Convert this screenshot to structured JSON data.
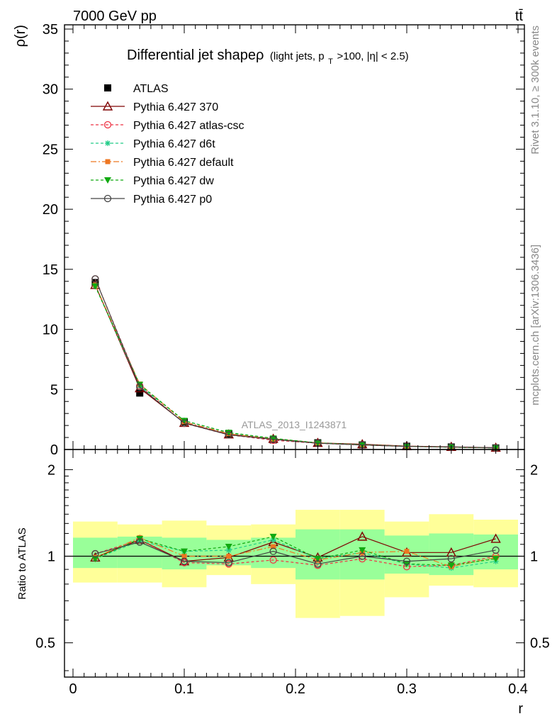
{
  "header": {
    "left": "7000 GeV pp",
    "right": "tt̄"
  },
  "side_text": {
    "rivet": "Rivet 3.1.10, ≥ 300k events",
    "mcplots": "mcplots.cern.ch [arXiv:1306.3436]"
  },
  "watermark": "ATLAS_2013_I1243871",
  "title": {
    "main": "Differential jet shapeρ",
    "sub_a": "(light jets, p",
    "sub_sub": "T",
    "sub_b": ">100, |η| < 2.5)"
  },
  "chart_data": [
    {
      "type": "line",
      "panel": "main",
      "ylabel": "ρ(r)",
      "xlim": [
        0,
        0.4
      ],
      "ylim": [
        0,
        35
      ],
      "x_ticks": [
        0,
        0.1,
        0.2,
        0.3,
        0.4
      ],
      "x_tick_labels": [
        "0",
        "0.1",
        "0.2",
        "0.3",
        "0.4"
      ],
      "y_ticks": [
        0,
        5,
        10,
        15,
        20,
        25,
        30,
        35
      ],
      "y_tick_labels": [
        "0",
        "5",
        "10",
        "15",
        "20",
        "25",
        "30",
        "35"
      ],
      "legend_position": "top-left",
      "x": [
        0.02,
        0.06,
        0.1,
        0.14,
        0.18,
        0.22,
        0.26,
        0.3,
        0.34,
        0.38
      ],
      "series": [
        {
          "name": "ATLAS",
          "color": "#000000",
          "marker": "square",
          "dash": "none",
          "values": [
            13.9,
            4.7,
            2.3,
            1.3,
            0.8,
            0.56,
            0.38,
            0.27,
            0.21,
            0.13
          ]
        },
        {
          "name": "Pythia 6.427 370",
          "color": "#7f0000",
          "marker": "triangle-open",
          "dash": "solid",
          "values": [
            13.7,
            5.1,
            2.22,
            1.26,
            0.89,
            0.55,
            0.44,
            0.28,
            0.22,
            0.15
          ]
        },
        {
          "name": "Pythia 6.427 atlas-csc",
          "color": "#ee3344",
          "marker": "circle-open",
          "dash": "short",
          "values": [
            14.2,
            5.3,
            2.18,
            1.22,
            0.77,
            0.52,
            0.37,
            0.25,
            0.19,
            0.13
          ]
        },
        {
          "name": "Pythia 6.427 d6t",
          "color": "#22cc88",
          "marker": "star",
          "dash": "short",
          "values": [
            13.6,
            5.3,
            2.4,
            1.38,
            0.9,
            0.55,
            0.39,
            0.26,
            0.19,
            0.13
          ]
        },
        {
          "name": "Pythia 6.427 default",
          "color": "#ee7722",
          "marker": "square-filled",
          "dash": "dashdot",
          "values": [
            13.7,
            5.45,
            2.3,
            1.31,
            0.86,
            0.55,
            0.4,
            0.28,
            0.2,
            0.13
          ]
        },
        {
          "name": "Pythia 6.427 dw",
          "color": "#11aa11",
          "marker": "triangle-down",
          "dash": "short",
          "values": [
            13.6,
            5.4,
            2.4,
            1.41,
            0.93,
            0.55,
            0.4,
            0.26,
            0.19,
            0.13
          ]
        },
        {
          "name": "Pythia 6.427 p0",
          "color": "#444444",
          "marker": "circle-open",
          "dash": "solid",
          "values": [
            14.2,
            5.2,
            2.2,
            1.22,
            0.84,
            0.52,
            0.38,
            0.26,
            0.21,
            0.14
          ]
        }
      ]
    },
    {
      "type": "line",
      "panel": "ratio",
      "xlabel": "r",
      "ylabel": "Ratio to ATLAS",
      "xlim": [
        0,
        0.4
      ],
      "ylim": [
        0.38,
        2.35
      ],
      "log_y": true,
      "y_ticks": [
        0.5,
        1,
        2
      ],
      "y_tick_labels": [
        "0.5",
        "1",
        "2"
      ],
      "x": [
        0.02,
        0.06,
        0.1,
        0.14,
        0.18,
        0.22,
        0.26,
        0.3,
        0.34,
        0.38
      ],
      "bins": [
        [
          0.0,
          0.04
        ],
        [
          0.04,
          0.08
        ],
        [
          0.08,
          0.12
        ],
        [
          0.12,
          0.16
        ],
        [
          0.16,
          0.2
        ],
        [
          0.2,
          0.24
        ],
        [
          0.24,
          0.28
        ],
        [
          0.28,
          0.32
        ],
        [
          0.32,
          0.36
        ],
        [
          0.36,
          0.4
        ]
      ],
      "band_inner": [
        [
          0.91,
          1.16
        ],
        [
          0.91,
          1.17
        ],
        [
          0.9,
          1.16
        ],
        [
          0.93,
          1.14
        ],
        [
          0.91,
          1.16
        ],
        [
          0.83,
          1.24
        ],
        [
          0.83,
          1.24
        ],
        [
          0.87,
          1.18
        ],
        [
          0.86,
          1.2
        ],
        [
          0.9,
          1.19
        ]
      ],
      "band_outer": [
        [
          0.81,
          1.32
        ],
        [
          0.81,
          1.29
        ],
        [
          0.78,
          1.33
        ],
        [
          0.86,
          1.28
        ],
        [
          0.8,
          1.29
        ],
        [
          0.61,
          1.45
        ],
        [
          0.62,
          1.45
        ],
        [
          0.72,
          1.32
        ],
        [
          0.79,
          1.4
        ],
        [
          0.78,
          1.34
        ]
      ],
      "series": [
        {
          "name": "Pythia 6.427 370",
          "color": "#7f0000",
          "marker": "triangle-open",
          "dash": "solid",
          "values": [
            0.99,
            1.14,
            0.96,
            0.99,
            1.12,
            0.99,
            1.17,
            1.03,
            1.03,
            1.15
          ]
        },
        {
          "name": "Pythia 6.427 atlas-csc",
          "color": "#ee3344",
          "marker": "circle-open",
          "dash": "short",
          "values": [
            1.02,
            1.14,
            0.95,
            0.94,
            0.97,
            0.93,
            0.98,
            0.92,
            0.93,
            1.0
          ]
        },
        {
          "name": "Pythia 6.427 d6t",
          "color": "#22cc88",
          "marker": "star",
          "dash": "short",
          "values": [
            0.98,
            1.13,
            1.04,
            1.05,
            1.14,
            0.98,
            1.03,
            0.94,
            0.91,
            0.96
          ]
        },
        {
          "name": "Pythia 6.427 default",
          "color": "#ee7722",
          "marker": "square-filled",
          "dash": "dashdot",
          "values": [
            0.99,
            1.16,
            1.0,
            1.0,
            1.08,
            0.97,
            1.03,
            1.04,
            0.92,
            0.99
          ]
        },
        {
          "name": "Pythia 6.427 dw",
          "color": "#11aa11",
          "marker": "triangle-down",
          "dash": "short",
          "values": [
            0.98,
            1.15,
            1.04,
            1.08,
            1.17,
            0.98,
            1.05,
            0.94,
            0.93,
            0.98
          ]
        },
        {
          "name": "Pythia 6.427 p0",
          "color": "#444444",
          "marker": "circle-open",
          "dash": "solid",
          "values": [
            1.02,
            1.12,
            0.96,
            0.95,
            1.04,
            0.94,
            1.0,
            0.96,
            0.98,
            1.05
          ]
        }
      ]
    }
  ]
}
